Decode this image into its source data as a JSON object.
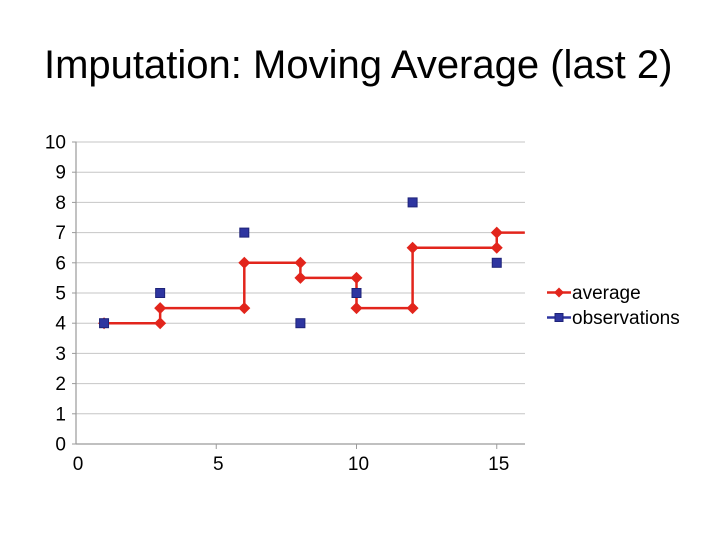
{
  "slide": {
    "title": "Imputation: Moving Average (last 2)",
    "background_color": "#ffffff",
    "title_color": "#000000"
  },
  "chart_data": {
    "type": "line",
    "title": "",
    "xlabel": "",
    "ylabel": "",
    "xlim": [
      0,
      16
    ],
    "ylim": [
      0,
      10
    ],
    "x_ticks": [
      0,
      5,
      10,
      15
    ],
    "y_ticks": [
      0,
      1,
      2,
      3,
      4,
      5,
      6,
      7,
      8,
      9,
      10
    ],
    "grid": "horizontal",
    "grid_color": "#c6c6c6",
    "axis_color": "#9a9a9a",
    "tick_label_color": "#000000",
    "legend_position": "right",
    "legend_text_color": "#000000",
    "series": [
      {
        "name": "average",
        "color": "#e2251c",
        "marker": "diamond",
        "line": true,
        "points": [
          [
            1,
            4
          ],
          [
            3,
            4
          ],
          [
            3,
            4.5
          ],
          [
            6,
            4.5
          ],
          [
            6,
            6
          ],
          [
            8,
            6
          ],
          [
            8,
            5.5
          ],
          [
            10,
            5.5
          ],
          [
            10,
            4.5
          ],
          [
            12,
            4.5
          ],
          [
            12,
            6.5
          ],
          [
            15,
            6.5
          ],
          [
            15,
            7
          ]
        ],
        "line_extends_to": [
          16,
          7
        ]
      },
      {
        "name": "observations",
        "color": "#2e35a0",
        "marker": "square",
        "marker_edge_color": "#1e2378",
        "line": false,
        "points": [
          [
            1,
            4
          ],
          [
            3,
            5
          ],
          [
            6,
            7
          ],
          [
            8,
            4
          ],
          [
            10,
            5
          ],
          [
            12,
            8
          ],
          [
            15,
            6
          ]
        ]
      }
    ]
  }
}
